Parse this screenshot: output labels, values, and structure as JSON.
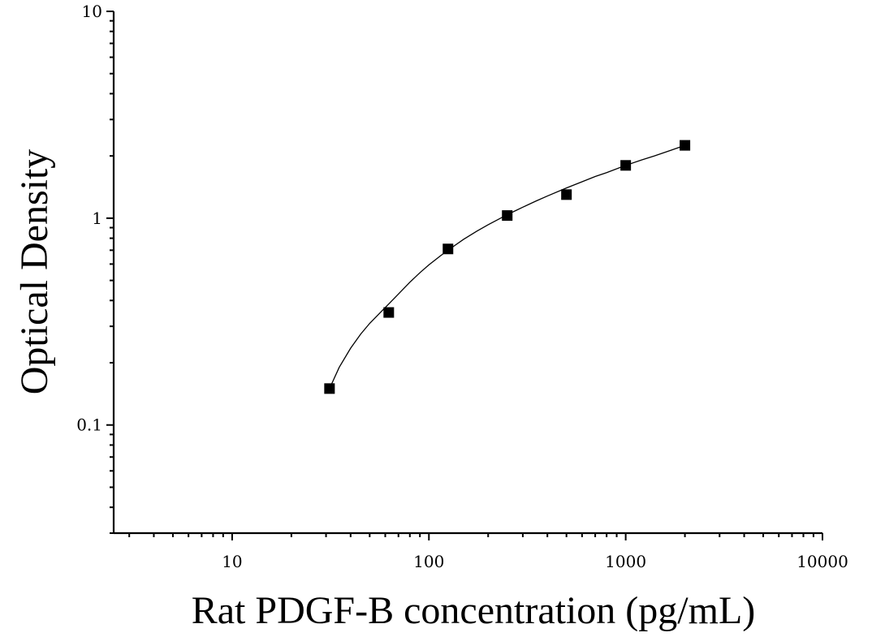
{
  "chart_data": {
    "type": "scatter",
    "title": "",
    "xlabel": "Rat PDGF-B concentration (pg/mL)",
    "ylabel": "Optical Density",
    "x_scale": "log",
    "y_scale": "log",
    "xlim": [
      2.5,
      10000
    ],
    "ylim": [
      0.03,
      10
    ],
    "x_ticks": [
      10,
      100,
      1000,
      10000
    ],
    "x_tick_labels": [
      "10",
      "100",
      "1000",
      "10000"
    ],
    "y_ticks": [
      0.1,
      1,
      10
    ],
    "y_tick_labels": [
      "0.1",
      "1",
      "10"
    ],
    "grid": false,
    "legend": "none",
    "series": [
      {
        "marker": "square",
        "x": [
          31.25,
          62.5,
          125,
          250,
          500,
          1000,
          2000
        ],
        "y": [
          0.15,
          0.35,
          0.71,
          1.03,
          1.3,
          1.8,
          2.25
        ]
      }
    ],
    "fit_curve": {
      "x": [
        31.25,
        35,
        40,
        45,
        50,
        55,
        62.5,
        70,
        80,
        90,
        100,
        115,
        125,
        150,
        175,
        200,
        250,
        300,
        350,
        400,
        500,
        600,
        700,
        800,
        1000,
        1200,
        1400,
        1700,
        2000
      ],
      "y": [
        0.15,
        0.19,
        0.235,
        0.275,
        0.31,
        0.34,
        0.385,
        0.43,
        0.49,
        0.545,
        0.595,
        0.66,
        0.7,
        0.79,
        0.865,
        0.93,
        1.04,
        1.13,
        1.21,
        1.28,
        1.4,
        1.5,
        1.59,
        1.66,
        1.8,
        1.91,
        2.0,
        2.13,
        2.25
      ]
    },
    "colors": {
      "axis": "#000000",
      "marker": "#000000",
      "curve": "#000000"
    }
  }
}
